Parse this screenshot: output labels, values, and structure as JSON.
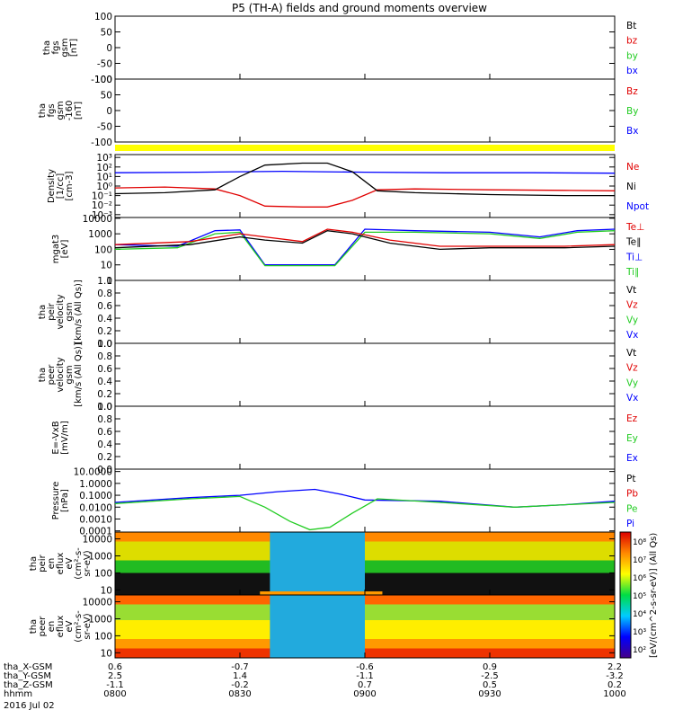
{
  "title": "P5 (TH-A) fields and ground moments overview",
  "colors": {
    "black": "#000000",
    "red": "#e00000",
    "green": "#22cc22",
    "blue": "#0000ff",
    "yellow": "#ffff00",
    "orange": "#ff9900"
  },
  "panels": [
    {
      "id": "fgs1",
      "ylabel": [
        "tha",
        "fgs",
        "gsm",
        "[nT]"
      ],
      "ticks": [
        "100",
        "50",
        "0",
        "-50",
        "-100"
      ],
      "tickvals": [
        100,
        50,
        0,
        -50,
        -100
      ],
      "ylim": [
        -100,
        100
      ],
      "legend": [
        {
          "label": "Bt",
          "color": "black"
        },
        {
          "label": "bz",
          "color": "red"
        },
        {
          "label": "by",
          "color": "green"
        },
        {
          "label": "bx",
          "color": "blue"
        }
      ]
    },
    {
      "id": "fgs2",
      "ylabel": [
        "tha",
        "fgs",
        "gsm",
        "-160",
        "[nT]"
      ],
      "ticks": [
        "100",
        "50",
        "0",
        "-50",
        "-100"
      ],
      "tickvals": [
        100,
        50,
        0,
        -50,
        -100
      ],
      "ylim": [
        -100,
        100
      ],
      "legend": [
        {
          "label": "Bz",
          "color": "red"
        },
        {
          "label": "By",
          "color": "green"
        },
        {
          "label": "Bx",
          "color": "blue"
        }
      ]
    },
    {
      "id": "density",
      "ylabel": [
        "Density",
        "[1/cc]",
        "[cm-3]"
      ],
      "ticks": [
        "10³",
        "10²",
        "10¹",
        "10⁰",
        "10⁻¹",
        "10⁻²",
        "10⁻³"
      ],
      "tickvals": [
        3,
        2,
        1,
        0,
        -1,
        -2,
        -3
      ],
      "ylim": [
        -3.3,
        3.3
      ],
      "log": true,
      "legend": [
        {
          "label": "Ne",
          "color": "red"
        },
        {
          "label": "Ni",
          "color": "black"
        },
        {
          "label": "Npot",
          "color": "blue"
        }
      ]
    },
    {
      "id": "temp",
      "ylabel": [
        "mgat3",
        "[eV]"
      ],
      "ticks": [
        "10000",
        "1000",
        "100",
        "10",
        "1"
      ],
      "tickvals": [
        4,
        3,
        2,
        1,
        0
      ],
      "ylim": [
        0,
        4.05
      ],
      "log": true,
      "legend": [
        {
          "label": "Te⊥",
          "color": "red"
        },
        {
          "label": "Te∥",
          "color": "black"
        },
        {
          "label": "Ti⊥",
          "color": "blue"
        },
        {
          "label": "Ti∥",
          "color": "green"
        }
      ]
    },
    {
      "id": "peirvel",
      "ylabel": [
        "tha",
        "peir",
        "velocity",
        "gsm",
        "[km/s (All Qs)]"
      ],
      "ticks": [
        "1.0",
        "0.8",
        "0.6",
        "0.4",
        "0.2",
        "0.0"
      ],
      "tickvals": [
        1,
        0.8,
        0.6,
        0.4,
        0.2,
        0
      ],
      "ylim": [
        0,
        1
      ],
      "legend": [
        {
          "label": "Vt",
          "color": "black"
        },
        {
          "label": "Vz",
          "color": "red"
        },
        {
          "label": "Vy",
          "color": "green"
        },
        {
          "label": "Vx",
          "color": "blue"
        }
      ]
    },
    {
      "id": "peervel",
      "ylabel": [
        "tha",
        "peer",
        "velocity",
        "gsm",
        "[km/s (All Qs)]"
      ],
      "ticks": [
        "1.0",
        "0.8",
        "0.6",
        "0.4",
        "0.2",
        "0.0"
      ],
      "tickvals": [
        1,
        0.8,
        0.6,
        0.4,
        0.2,
        0
      ],
      "ylim": [
        0,
        1
      ],
      "legend": [
        {
          "label": "Vt",
          "color": "black"
        },
        {
          "label": "Vz",
          "color": "red"
        },
        {
          "label": "Vy",
          "color": "green"
        },
        {
          "label": "Vx",
          "color": "blue"
        }
      ]
    },
    {
      "id": "efield",
      "ylabel": [
        "E=-VxB",
        "[mV/m]"
      ],
      "ticks": [
        "1.0",
        "0.8",
        "0.6",
        "0.4",
        "0.2",
        "0.0"
      ],
      "tickvals": [
        1,
        0.8,
        0.6,
        0.4,
        0.2,
        0
      ],
      "ylim": [
        0,
        1
      ],
      "legend": [
        {
          "label": "Ez",
          "color": "red"
        },
        {
          "label": "Ey",
          "color": "green"
        },
        {
          "label": "Ex",
          "color": "blue"
        }
      ]
    },
    {
      "id": "pressure",
      "ylabel": [
        "Pressure",
        "[nPa]"
      ],
      "ticks": [
        "10.0000",
        "1.0000",
        "0.1000",
        "0.0100",
        "0.0010",
        "0.0001"
      ],
      "tickvals": [
        1,
        0,
        -1,
        -2,
        -3,
        -4
      ],
      "ylim": [
        -4.1,
        1.2
      ],
      "log": true,
      "legend": [
        {
          "label": "Pt",
          "color": "black"
        },
        {
          "label": "Pb",
          "color": "red"
        },
        {
          "label": "Pe",
          "color": "green"
        },
        {
          "label": "Pi",
          "color": "blue"
        }
      ]
    },
    {
      "id": "peirspec",
      "ylabel": [
        "tha",
        "peir",
        "en",
        "eflux",
        "eV",
        "(cm²-s-",
        "sr-eV)"
      ],
      "ticks": [
        "10000",
        "1000",
        "100",
        "10"
      ],
      "tickvals": [
        4,
        3,
        2,
        1
      ],
      "ylim": [
        0.7,
        4.4
      ],
      "log": true
    },
    {
      "id": "peerspec",
      "ylabel": [
        "tha",
        "peer",
        "en",
        "eflux",
        "eV",
        "(cm²-s-",
        "sr-eV)"
      ],
      "ticks": [
        "10000",
        "1000",
        "100",
        "10"
      ],
      "tickvals": [
        4,
        3,
        2,
        1
      ],
      "ylim": [
        0.7,
        4.4
      ],
      "log": true
    }
  ],
  "colorbar": {
    "ticks": [
      "10⁸",
      "10⁷",
      "10⁶",
      "10⁵",
      "10⁴",
      "10³",
      "10²"
    ],
    "label": "[eV/(cm^2-s-sr-eV)] (All Qs)"
  },
  "xaxis": {
    "rows": [
      {
        "label": "tha_X-GSM",
        "values": [
          "0.6",
          "-0.7",
          "-0.6",
          "0.9",
          "2.2"
        ]
      },
      {
        "label": "tha_Y-GSM",
        "values": [
          "2.5",
          "1.4",
          "-1.1",
          "-2.5",
          "-3.2"
        ]
      },
      {
        "label": "tha_Z-GSM",
        "values": [
          "-1.1",
          "-0.2",
          "0.7",
          "0.5",
          "0.2"
        ]
      },
      {
        "label": "hhmm",
        "values": [
          "0800",
          "0830",
          "0900",
          "0930",
          "1000"
        ]
      }
    ],
    "date": "2016 Jul 02"
  },
  "chart_data": {
    "type": "line",
    "x_unit": "hours UT",
    "x_range": [
      8.0,
      10.0
    ],
    "series": [
      {
        "panel": "density",
        "name": "Npot",
        "color": "blue",
        "x": [
          8.0,
          8.33,
          8.5,
          8.67,
          8.83,
          9.0,
          9.33,
          9.67,
          10.0
        ],
        "log10_y": [
          1.4,
          1.45,
          1.5,
          1.55,
          1.5,
          1.45,
          1.4,
          1.4,
          1.35
        ]
      },
      {
        "panel": "density",
        "name": "Ne",
        "color": "red",
        "x": [
          8.0,
          8.2,
          8.4,
          8.5,
          8.6,
          8.75,
          8.85,
          8.95,
          9.05,
          9.2,
          9.5,
          9.8,
          10.0
        ],
        "log10_y": [
          -0.2,
          -0.1,
          -0.3,
          -1.0,
          -2.1,
          -2.2,
          -2.2,
          -1.5,
          -0.4,
          -0.3,
          -0.4,
          -0.45,
          -0.5
        ]
      },
      {
        "panel": "density",
        "name": "Ni",
        "color": "black",
        "x": [
          8.0,
          8.2,
          8.4,
          8.5,
          8.6,
          8.75,
          8.85,
          8.95,
          9.05,
          9.2,
          9.5,
          9.8,
          10.0
        ],
        "log10_y": [
          -0.8,
          -0.7,
          -0.4,
          1.0,
          2.2,
          2.4,
          2.4,
          1.5,
          -0.5,
          -0.7,
          -0.9,
          -1.0,
          -1.0
        ]
      },
      {
        "panel": "temp",
        "name": "Ti⊥",
        "color": "blue",
        "x": [
          8.0,
          8.25,
          8.4,
          8.5,
          8.6,
          8.75,
          8.88,
          9.0,
          9.2,
          9.5,
          9.7,
          9.85,
          10.0
        ],
        "log10_y": [
          2.3,
          2.2,
          3.2,
          3.25,
          1.0,
          1.0,
          1.0,
          3.3,
          3.2,
          3.1,
          2.8,
          3.2,
          3.3
        ]
      },
      {
        "panel": "temp",
        "name": "Ti∥",
        "color": "green",
        "x": [
          8.0,
          8.25,
          8.4,
          8.5,
          8.6,
          8.75,
          8.88,
          9.0,
          9.2,
          9.5,
          9.7,
          9.85,
          10.0
        ],
        "log10_y": [
          2.0,
          2.1,
          3.0,
          3.1,
          0.95,
          0.95,
          0.95,
          3.1,
          3.1,
          3.0,
          2.7,
          3.1,
          3.2
        ]
      },
      {
        "panel": "temp",
        "name": "Te⊥",
        "color": "red",
        "x": [
          8.0,
          8.3,
          8.5,
          8.6,
          8.75,
          8.85,
          8.95,
          9.1,
          9.3,
          9.5,
          9.8,
          10.0
        ],
        "log10_y": [
          2.3,
          2.5,
          3.0,
          2.8,
          2.5,
          3.3,
          3.1,
          2.6,
          2.2,
          2.2,
          2.2,
          2.3
        ]
      },
      {
        "panel": "temp",
        "name": "Te∥",
        "color": "black",
        "x": [
          8.0,
          8.3,
          8.5,
          8.6,
          8.75,
          8.85,
          8.95,
          9.1,
          9.3,
          9.5,
          9.8,
          10.0
        ],
        "log10_y": [
          2.1,
          2.3,
          2.8,
          2.6,
          2.4,
          3.2,
          3.0,
          2.4,
          2.0,
          2.1,
          2.1,
          2.2
        ]
      },
      {
        "panel": "pressure",
        "name": "Pi",
        "color": "blue",
        "x": [
          8.0,
          8.3,
          8.5,
          8.65,
          8.8,
          8.9,
          9.0,
          9.3,
          9.6,
          9.8,
          10.0
        ],
        "log10_y": [
          -1.6,
          -1.2,
          -1.0,
          -0.7,
          -0.5,
          -0.9,
          -1.4,
          -1.5,
          -2.0,
          -1.8,
          -1.5
        ]
      },
      {
        "panel": "pressure",
        "name": "Pe",
        "color": "green",
        "x": [
          8.0,
          8.3,
          8.5,
          8.6,
          8.7,
          8.78,
          8.86,
          8.95,
          9.05,
          9.3,
          9.6,
          9.8,
          10.0
        ],
        "log10_y": [
          -1.7,
          -1.3,
          -1.1,
          -2.0,
          -3.2,
          -3.9,
          -3.7,
          -2.5,
          -1.3,
          -1.6,
          -2.0,
          -1.8,
          -1.6
        ]
      }
    ]
  }
}
